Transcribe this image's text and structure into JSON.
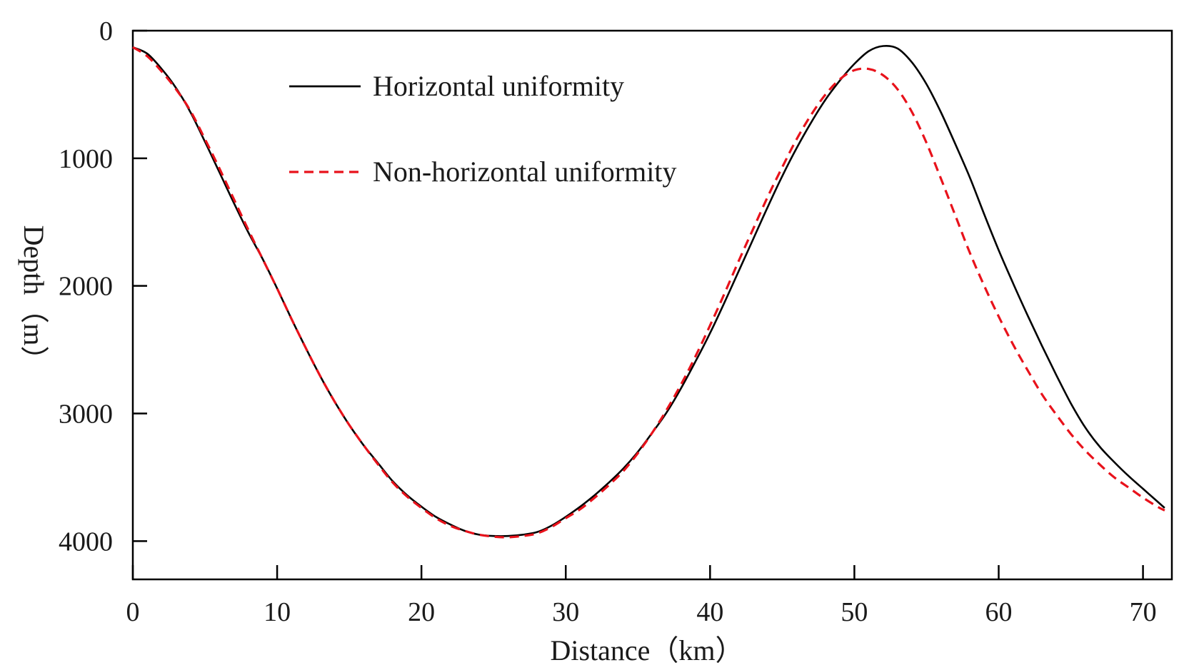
{
  "chart_data": {
    "type": "line",
    "title": "",
    "xlabel": "Distance（km）",
    "ylabel": "Depth（m）",
    "xlim": [
      0,
      72
    ],
    "ylim": [
      0,
      4300
    ],
    "y_inverted": true,
    "x_ticks": [
      0,
      10,
      20,
      30,
      40,
      50,
      60,
      70
    ],
    "y_ticks": [
      0,
      1000,
      2000,
      3000,
      4000
    ],
    "legend_position": "top-left",
    "series": [
      {
        "name": "Horizontal uniformity",
        "color": "#000000",
        "style": "solid",
        "points": [
          [
            0,
            130
          ],
          [
            1,
            180
          ],
          [
            2,
            300
          ],
          [
            3,
            450
          ],
          [
            4,
            640
          ],
          [
            5,
            870
          ],
          [
            6,
            1110
          ],
          [
            7,
            1350
          ],
          [
            8,
            1580
          ],
          [
            9,
            1790
          ],
          [
            10,
            2020
          ],
          [
            11,
            2260
          ],
          [
            12,
            2490
          ],
          [
            13,
            2710
          ],
          [
            14,
            2910
          ],
          [
            15,
            3090
          ],
          [
            16,
            3250
          ],
          [
            17,
            3390
          ],
          [
            18,
            3530
          ],
          [
            19,
            3640
          ],
          [
            20,
            3730
          ],
          [
            21,
            3810
          ],
          [
            22,
            3870
          ],
          [
            23,
            3920
          ],
          [
            24,
            3950
          ],
          [
            25,
            3960
          ],
          [
            26,
            3960
          ],
          [
            27,
            3950
          ],
          [
            28,
            3930
          ],
          [
            29,
            3880
          ],
          [
            30,
            3810
          ],
          [
            31,
            3730
          ],
          [
            32,
            3640
          ],
          [
            33,
            3540
          ],
          [
            34,
            3430
          ],
          [
            35,
            3300
          ],
          [
            36,
            3150
          ],
          [
            37,
            2990
          ],
          [
            38,
            2800
          ],
          [
            39,
            2590
          ],
          [
            40,
            2370
          ],
          [
            41,
            2130
          ],
          [
            42,
            1880
          ],
          [
            43,
            1630
          ],
          [
            44,
            1380
          ],
          [
            45,
            1140
          ],
          [
            46,
            920
          ],
          [
            47,
            720
          ],
          [
            48,
            540
          ],
          [
            49,
            390
          ],
          [
            50,
            260
          ],
          [
            51,
            160
          ],
          [
            52,
            120
          ],
          [
            53,
            140
          ],
          [
            54,
            250
          ],
          [
            55,
            420
          ],
          [
            56,
            640
          ],
          [
            57,
            890
          ],
          [
            58,
            1150
          ],
          [
            59,
            1440
          ],
          [
            60,
            1720
          ],
          [
            61,
            1980
          ],
          [
            62,
            2230
          ],
          [
            63,
            2470
          ],
          [
            64,
            2700
          ],
          [
            65,
            2920
          ],
          [
            66,
            3110
          ],
          [
            67,
            3260
          ],
          [
            68,
            3380
          ],
          [
            69,
            3490
          ],
          [
            70,
            3590
          ],
          [
            71,
            3690
          ],
          [
            71.5,
            3740
          ]
        ]
      },
      {
        "name": "Non-horizontal uniformity",
        "color": "#e8121b",
        "style": "dashed",
        "points": [
          [
            0,
            130
          ],
          [
            1,
            200
          ],
          [
            2,
            320
          ],
          [
            3,
            460
          ],
          [
            4,
            630
          ],
          [
            5,
            850
          ],
          [
            6,
            1080
          ],
          [
            7,
            1320
          ],
          [
            8,
            1560
          ],
          [
            9,
            1790
          ],
          [
            10,
            2020
          ],
          [
            11,
            2260
          ],
          [
            12,
            2490
          ],
          [
            13,
            2710
          ],
          [
            14,
            2910
          ],
          [
            15,
            3090
          ],
          [
            16,
            3250
          ],
          [
            17,
            3400
          ],
          [
            18,
            3540
          ],
          [
            19,
            3650
          ],
          [
            20,
            3740
          ],
          [
            21,
            3820
          ],
          [
            22,
            3880
          ],
          [
            23,
            3920
          ],
          [
            24,
            3950
          ],
          [
            25,
            3965
          ],
          [
            26,
            3970
          ],
          [
            27,
            3960
          ],
          [
            28,
            3940
          ],
          [
            29,
            3890
          ],
          [
            30,
            3820
          ],
          [
            31,
            3750
          ],
          [
            32,
            3660
          ],
          [
            33,
            3560
          ],
          [
            34,
            3450
          ],
          [
            35,
            3310
          ],
          [
            36,
            3150
          ],
          [
            37,
            2970
          ],
          [
            38,
            2770
          ],
          [
            39,
            2550
          ],
          [
            40,
            2310
          ],
          [
            41,
            2060
          ],
          [
            42,
            1800
          ],
          [
            43,
            1550
          ],
          [
            44,
            1300
          ],
          [
            45,
            1070
          ],
          [
            46,
            850
          ],
          [
            47,
            660
          ],
          [
            48,
            500
          ],
          [
            49,
            380
          ],
          [
            50,
            310
          ],
          [
            51,
            300
          ],
          [
            52,
            350
          ],
          [
            53,
            460
          ],
          [
            54,
            640
          ],
          [
            55,
            880
          ],
          [
            56,
            1160
          ],
          [
            57,
            1450
          ],
          [
            58,
            1740
          ],
          [
            59,
            2000
          ],
          [
            60,
            2240
          ],
          [
            61,
            2460
          ],
          [
            62,
            2660
          ],
          [
            63,
            2850
          ],
          [
            64,
            3010
          ],
          [
            65,
            3160
          ],
          [
            66,
            3290
          ],
          [
            67,
            3400
          ],
          [
            68,
            3500
          ],
          [
            69,
            3580
          ],
          [
            70,
            3660
          ],
          [
            71,
            3730
          ],
          [
            71.5,
            3760
          ]
        ]
      }
    ]
  }
}
